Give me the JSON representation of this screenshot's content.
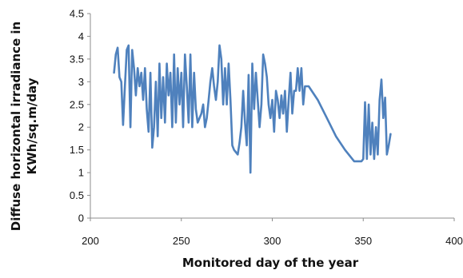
{
  "chart_data": {
    "type": "line",
    "title": "",
    "xlabel": "Monitored day of the year",
    "ylabel_lines": [
      "Diffuse horizontal irradiance in",
      "KWh/sq.m/day"
    ],
    "xlim": [
      200,
      400
    ],
    "ylim": [
      0,
      4.5
    ],
    "x_ticks": [
      "200",
      "250",
      "300",
      "350",
      "400"
    ],
    "y_ticks": [
      "0",
      "0.5",
      "1",
      "1.5",
      "2",
      "2.5",
      "3",
      "3.5",
      "4",
      "4.5"
    ],
    "grid": false,
    "legend": "none",
    "line_color": "#4f81bd",
    "series": [
      {
        "x": [
          213,
          214,
          215,
          216,
          217,
          218,
          219,
          220,
          221,
          222,
          223,
          224,
          225,
          226,
          227,
          228,
          229,
          230,
          231,
          232,
          233,
          234,
          235,
          236,
          237,
          238,
          239,
          240,
          241,
          242,
          243,
          244,
          245,
          246,
          247,
          248,
          249,
          250,
          251,
          252,
          253,
          254,
          255,
          256,
          257,
          258,
          259,
          260,
          261,
          262,
          263,
          264,
          265,
          266,
          267,
          268,
          269,
          270,
          271,
          272,
          273,
          274,
          275,
          276,
          277,
          278,
          279,
          280,
          281,
          282,
          283,
          284,
          285,
          286,
          287,
          288,
          289,
          290,
          291,
          292,
          293,
          294,
          295,
          296,
          297,
          298,
          299,
          300,
          301,
          302,
          303,
          304,
          305,
          306,
          307,
          308,
          309,
          310,
          311,
          312,
          313,
          314,
          315,
          316,
          317,
          318,
          320,
          325,
          330,
          335,
          340,
          345,
          349,
          350,
          351,
          352,
          353,
          354,
          355,
          356,
          357,
          358,
          359,
          360,
          361,
          362,
          363,
          364,
          365
        ],
        "values": [
          3.2,
          3.6,
          3.75,
          3.1,
          3.0,
          2.05,
          2.9,
          3.7,
          3.8,
          2.0,
          3.7,
          3.3,
          2.7,
          3.3,
          2.9,
          3.2,
          2.6,
          3.3,
          2.4,
          1.9,
          3.2,
          1.55,
          2.0,
          3.0,
          1.8,
          3.4,
          2.2,
          3.1,
          2.1,
          3.4,
          2.7,
          3.2,
          2.0,
          3.6,
          2.1,
          3.3,
          2.5,
          3.2,
          2.0,
          3.6,
          2.9,
          2.1,
          3.6,
          2.0,
          3.2,
          2.4,
          2.1,
          2.2,
          2.3,
          2.5,
          2.0,
          2.2,
          2.6,
          3.0,
          3.3,
          2.9,
          2.6,
          3.0,
          3.8,
          3.5,
          2.5,
          3.3,
          2.5,
          3.4,
          2.6,
          1.6,
          1.5,
          1.45,
          1.4,
          1.65,
          2.0,
          2.8,
          2.1,
          1.6,
          3.15,
          1.0,
          3.4,
          2.4,
          3.2,
          2.6,
          2.0,
          2.5,
          3.6,
          3.4,
          3.1,
          2.5,
          2.2,
          2.6,
          1.9,
          2.8,
          2.6,
          2.2,
          2.7,
          2.3,
          2.8,
          1.9,
          2.6,
          3.2,
          2.3,
          2.8,
          2.8,
          3.3,
          2.8,
          3.3,
          2.5,
          2.9,
          2.9,
          2.6,
          2.2,
          1.8,
          1.5,
          1.25,
          1.25,
          1.3,
          2.55,
          1.3,
          2.5,
          1.4,
          2.1,
          1.3,
          2.0,
          1.4,
          2.6,
          3.05,
          2.2,
          2.65,
          1.4,
          1.6,
          1.85
        ]
      }
    ]
  }
}
